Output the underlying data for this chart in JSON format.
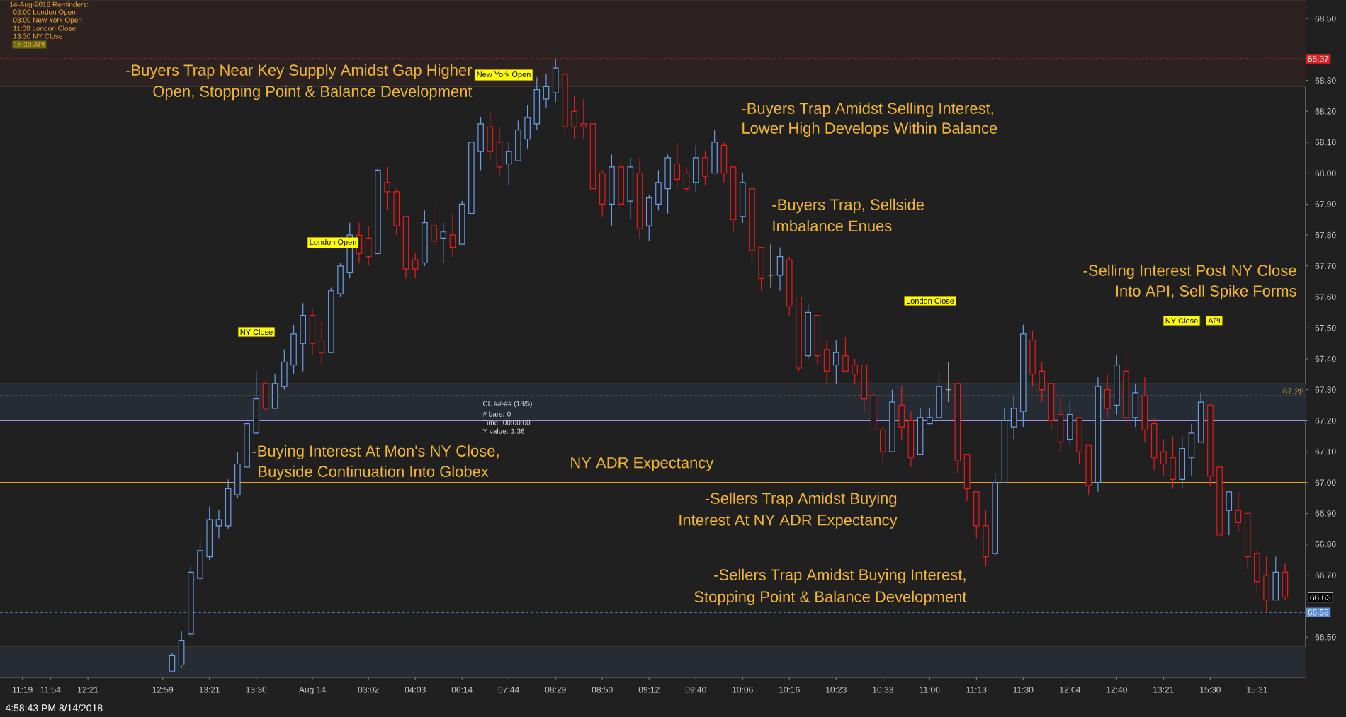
{
  "chart_data": {
    "type": "candlestick",
    "categories": [
      "11:19",
      null,
      null,
      "11:54",
      null,
      null,
      null,
      "12:21",
      null,
      null,
      null,
      null,
      null,
      null,
      null,
      "12:59",
      null,
      null,
      null,
      null,
      "13:21",
      null,
      null,
      null,
      null,
      "13:30",
      null,
      null,
      null,
      null,
      null,
      "Aug 14",
      null,
      null,
      null,
      null,
      null,
      "03:02",
      null,
      null,
      null,
      null,
      "04:03",
      null,
      null,
      null,
      null,
      "06:14",
      null,
      null,
      null,
      null,
      "07:44",
      null,
      null,
      null,
      null,
      "08:29",
      null,
      null,
      null,
      null,
      "08:50",
      null,
      null,
      null,
      null,
      "09:12",
      null,
      null,
      null,
      null,
      "09:40",
      null,
      null,
      null,
      null,
      "10:06",
      null,
      null,
      null,
      null,
      "10:16",
      null,
      null,
      null,
      null,
      "10:23",
      null,
      null,
      null,
      null,
      "10:33",
      null,
      null,
      null,
      null,
      "11:00",
      null,
      null,
      null,
      null,
      "11:13",
      null,
      null,
      null,
      null,
      "11:30",
      null,
      null,
      null,
      null,
      "12:04",
      null,
      null,
      null,
      null,
      "12:40",
      null,
      null,
      null,
      null,
      "13:21",
      null,
      null,
      null,
      null,
      "15:30",
      null,
      null,
      null,
      null,
      "15:31",
      null,
      null,
      null
    ],
    "ohlc": [
      null,
      null,
      null,
      null,
      null,
      null,
      null,
      null,
      null,
      null,
      null,
      null,
      null,
      null,
      null,
      null,
      [
        66.39,
        66.45,
        66.39,
        66.44
      ],
      [
        66.41,
        66.52,
        66.4,
        66.49
      ],
      [
        66.51,
        66.73,
        66.5,
        66.71
      ],
      [
        66.69,
        66.82,
        66.68,
        66.78
      ],
      [
        66.76,
        66.92,
        66.75,
        66.88
      ],
      [
        66.86,
        66.91,
        66.82,
        66.88
      ],
      [
        66.86,
        67.01,
        66.85,
        66.98
      ],
      [
        66.96,
        67.1,
        66.95,
        67.06
      ],
      [
        67.05,
        67.21,
        67.05,
        67.19
      ],
      [
        67.16,
        67.36,
        67.16,
        67.27
      ],
      [
        67.32,
        67.33,
        67.23,
        67.24
      ],
      [
        67.24,
        67.35,
        67.24,
        67.32
      ],
      [
        67.31,
        67.43,
        67.3,
        67.39
      ],
      [
        67.38,
        67.51,
        67.35,
        67.48
      ],
      [
        67.45,
        67.58,
        67.36,
        67.54
      ],
      [
        67.54,
        67.56,
        67.41,
        67.45
      ],
      [
        67.46,
        67.52,
        67.38,
        67.42
      ],
      [
        67.42,
        67.63,
        67.42,
        67.62
      ],
      [
        67.61,
        67.71,
        67.6,
        67.7
      ],
      [
        67.68,
        67.84,
        67.66,
        67.8
      ],
      [
        67.8,
        67.84,
        67.71,
        67.74
      ],
      [
        67.79,
        67.83,
        67.7,
        67.73
      ],
      [
        67.74,
        68.02,
        67.74,
        68.01
      ],
      [
        67.97,
        68.02,
        67.88,
        67.94
      ],
      [
        67.94,
        67.95,
        67.8,
        67.83
      ],
      [
        67.86,
        67.86,
        67.66,
        67.69
      ],
      [
        67.72,
        67.74,
        67.66,
        67.69
      ],
      [
        67.71,
        67.88,
        67.7,
        67.84
      ],
      [
        67.83,
        67.9,
        67.75,
        67.78
      ],
      [
        67.79,
        67.84,
        67.71,
        67.81
      ],
      [
        67.8,
        67.87,
        67.73,
        67.76
      ],
      [
        67.77,
        67.91,
        67.77,
        67.9
      ],
      [
        67.87,
        68.1,
        67.87,
        68.1
      ],
      [
        68.07,
        68.18,
        68.01,
        68.16
      ],
      [
        68.15,
        68.2,
        68.04,
        68.07
      ],
      [
        68.1,
        68.15,
        67.99,
        68.02
      ],
      [
        68.03,
        68.1,
        67.96,
        68.07
      ],
      [
        68.04,
        68.17,
        68.04,
        68.14
      ],
      [
        68.11,
        68.22,
        68.08,
        68.18
      ],
      [
        68.16,
        68.31,
        68.14,
        68.27
      ],
      [
        68.24,
        68.32,
        68.21,
        68.28
      ],
      [
        68.26,
        68.37,
        68.23,
        68.34
      ],
      [
        68.32,
        68.33,
        68.12,
        68.15
      ],
      [
        68.2,
        68.25,
        68.11,
        68.15
      ],
      [
        68.16,
        68.24,
        68.11,
        68.15
      ],
      [
        68.16,
        68.16,
        67.95,
        67.95
      ],
      [
        68.0,
        68.01,
        67.86,
        67.9
      ],
      [
        67.9,
        68.06,
        67.83,
        68.02
      ],
      [
        68.02,
        68.05,
        67.9,
        67.9
      ],
      [
        67.91,
        68.05,
        67.85,
        68.02
      ],
      [
        68.0,
        68.05,
        67.79,
        67.82
      ],
      [
        67.83,
        67.93,
        67.78,
        67.92
      ],
      [
        67.9,
        68.01,
        67.88,
        67.97
      ],
      [
        67.95,
        68.06,
        67.87,
        68.05
      ],
      [
        68.03,
        68.1,
        67.95,
        67.98
      ],
      [
        68.0,
        68.02,
        67.94,
        67.95
      ],
      [
        67.97,
        68.09,
        67.94,
        68.05
      ],
      [
        68.05,
        68.07,
        67.96,
        67.99
      ],
      [
        68.0,
        68.14,
        68.0,
        68.1
      ],
      [
        68.09,
        68.1,
        67.97,
        68.0
      ],
      [
        68.02,
        68.02,
        67.81,
        67.85
      ],
      [
        67.86,
        68.0,
        67.84,
        67.97
      ],
      [
        67.95,
        67.95,
        67.71,
        67.75
      ],
      [
        67.76,
        67.76,
        67.62,
        67.66
      ],
      [
        67.67,
        67.77,
        67.63,
        67.67
      ],
      [
        67.67,
        67.76,
        67.62,
        67.73
      ],
      [
        67.72,
        67.73,
        67.54,
        67.57
      ],
      [
        67.6,
        67.6,
        67.36,
        67.37
      ],
      [
        67.41,
        67.58,
        67.4,
        67.55
      ],
      [
        67.54,
        67.54,
        67.38,
        67.41
      ],
      [
        67.43,
        67.46,
        67.32,
        67.36
      ],
      [
        67.38,
        67.46,
        67.32,
        67.42
      ],
      [
        67.41,
        67.47,
        67.36,
        67.36
      ],
      [
        67.38,
        67.4,
        67.32,
        67.35
      ],
      [
        67.38,
        67.38,
        67.23,
        67.27
      ],
      [
        67.28,
        67.29,
        67.17,
        67.17
      ],
      [
        67.17,
        67.18,
        67.06,
        67.1
      ],
      [
        67.1,
        67.3,
        67.1,
        67.26
      ],
      [
        67.25,
        67.31,
        67.14,
        67.18
      ],
      [
        67.2,
        67.23,
        67.05,
        67.08
      ],
      [
        67.09,
        67.24,
        67.09,
        67.21
      ],
      [
        67.19,
        67.24,
        67.19,
        67.21
      ],
      [
        67.21,
        67.36,
        67.21,
        67.31
      ],
      [
        67.3,
        67.39,
        67.26,
        67.3
      ],
      [
        67.32,
        67.32,
        67.03,
        67.07
      ],
      [
        67.09,
        67.09,
        66.94,
        66.98
      ],
      [
        66.97,
        66.97,
        66.82,
        66.86
      ],
      [
        66.86,
        66.91,
        66.73,
        66.76
      ],
      [
        66.77,
        67.03,
        66.76,
        67.0
      ],
      [
        67.0,
        67.24,
        67.0,
        67.2
      ],
      [
        67.18,
        67.28,
        67.14,
        67.24
      ],
      [
        67.23,
        67.51,
        67.18,
        67.48
      ],
      [
        67.46,
        67.49,
        67.31,
        67.35
      ],
      [
        67.36,
        67.39,
        67.26,
        67.3
      ],
      [
        67.32,
        67.32,
        67.17,
        67.2
      ],
      [
        67.22,
        67.28,
        67.1,
        67.13
      ],
      [
        67.14,
        67.26,
        67.12,
        67.22
      ],
      [
        67.21,
        67.21,
        67.06,
        67.1
      ],
      [
        67.12,
        67.12,
        66.96,
        66.99
      ],
      [
        67.0,
        67.34,
        66.97,
        67.31
      ],
      [
        67.3,
        67.35,
        67.21,
        67.24
      ],
      [
        67.25,
        67.41,
        67.22,
        67.38
      ],
      [
        67.36,
        67.42,
        67.17,
        67.21
      ],
      [
        67.21,
        67.32,
        67.18,
        67.29
      ],
      [
        67.28,
        67.34,
        67.13,
        67.17
      ],
      [
        67.19,
        67.21,
        67.04,
        67.08
      ],
      [
        67.1,
        67.14,
        67.02,
        67.06
      ],
      [
        67.08,
        67.15,
        66.98,
        67.01
      ],
      [
        67.01,
        67.15,
        66.98,
        67.11
      ],
      [
        67.08,
        67.19,
        67.02,
        67.16
      ],
      [
        67.13,
        67.29,
        67.13,
        67.26
      ],
      [
        67.25,
        67.25,
        66.99,
        67.02
      ],
      [
        67.05,
        67.05,
        66.83,
        66.83
      ],
      [
        66.91,
        66.97,
        66.83,
        66.97
      ],
      [
        66.91,
        66.97,
        66.84,
        66.87
      ],
      [
        66.9,
        66.9,
        66.72,
        66.76
      ],
      [
        66.77,
        66.79,
        66.64,
        66.68
      ],
      [
        66.7,
        66.76,
        66.58,
        66.62
      ],
      [
        66.62,
        66.76,
        66.62,
        66.71
      ],
      [
        66.71,
        66.74,
        66.62,
        66.63
      ]
    ],
    "colors": [
      null,
      null,
      null,
      null,
      null,
      null,
      null,
      null,
      null,
      null,
      null,
      null,
      null,
      null,
      null,
      null,
      "#6a9de8",
      "#6a9de8",
      "#6a9de8",
      "#6a9de8",
      "#6a9de8",
      "#6a9de8",
      "#6a9de8",
      "#6a9de8",
      "#6a9de8",
      "#6a9de8",
      "#e81c1c",
      "#6a9de8",
      "#6a9de8",
      "#6a9de8",
      "#6a9de8",
      "#e81c1c",
      "#e81c1c",
      "#6a9de8",
      "#6a9de8",
      "#6a9de8",
      "#e81c1c",
      "#e81c1c",
      "#6a9de8",
      "#e81c1c",
      "#e81c1c",
      "#e81c1c",
      "#e81c1c",
      "#6a9de8",
      "#e81c1c",
      "#6a9de8",
      "#e81c1c",
      "#6a9de8",
      "#6a9de8",
      "#6a9de8",
      "#e81c1c",
      "#e81c1c",
      "#6a9de8",
      "#6a9de8",
      "#6a9de8",
      "#6a9de8",
      "#6a9de8",
      "#6a9de8",
      "#e81c1c",
      "#e81c1c",
      "#e81c1c",
      "#e81c1c",
      "#e81c1c",
      "#6a9de8",
      "#e81c1c",
      "#6a9de8",
      "#e81c1c",
      "#6a9de8",
      "#6a9de8",
      "#6a9de8",
      "#e81c1c",
      "#e81c1c",
      "#6a9de8",
      "#e81c1c",
      "#6a9de8",
      "#e81c1c",
      "#e81c1c",
      "#6a9de8",
      "#e81c1c",
      "#e81c1c",
      "#a0a0a0",
      "#6a9de8",
      "#e81c1c",
      "#e81c1c",
      "#6a9de8",
      "#e81c1c",
      "#e81c1c",
      "#6a9de8",
      "#e81c1c",
      "#e81c1c",
      "#e81c1c",
      "#e81c1c",
      "#e81c1c",
      "#6a9de8",
      "#e81c1c",
      "#e81c1c",
      "#6a9de8",
      "#6a9de8",
      "#6a9de8",
      "#a0a0a0",
      "#e81c1c",
      "#e81c1c",
      "#e81c1c",
      "#e81c1c",
      "#6a9de8",
      "#6a9de8",
      "#6a9de8",
      "#6a9de8",
      "#e81c1c",
      "#e81c1c",
      "#e81c1c",
      "#e81c1c",
      "#6a9de8",
      "#e81c1c",
      "#e81c1c",
      "#6a9de8",
      "#e81c1c",
      "#6a9de8",
      "#e81c1c",
      "#6a9de8",
      "#e81c1c",
      "#e81c1c",
      "#e81c1c",
      "#e81c1c",
      "#6a9de8",
      "#6a9de8",
      "#6a9de8",
      "#e81c1c",
      "#e81c1c",
      "#6a9de8",
      "#e81c1c",
      "#e81c1c",
      "#e81c1c",
      "#e81c1c",
      "#6a9de8",
      "#e81c1c"
    ],
    "ylim": [
      66.37,
      68.56
    ],
    "yticks": [
      {
        "value": 66.5,
        "label": "66.50"
      },
      {
        "value": 66.7,
        "label": "66.70"
      },
      {
        "value": 66.8,
        "label": "66.80"
      },
      {
        "value": 66.9,
        "label": "66.90"
      },
      {
        "value": 67.0,
        "label": "67.00"
      },
      {
        "value": 67.1,
        "label": "67.10"
      },
      {
        "value": 67.2,
        "label": "67.20"
      },
      {
        "value": 67.3,
        "label": "67.30"
      },
      {
        "value": 67.4,
        "label": "67.40"
      },
      {
        "value": 67.5,
        "label": "67.50"
      },
      {
        "value": 67.6,
        "label": "67.60"
      },
      {
        "value": 67.7,
        "label": "67.70"
      },
      {
        "value": 67.8,
        "label": "67.80"
      },
      {
        "value": 67.9,
        "label": "67.90"
      },
      {
        "value": 68.0,
        "label": "68.00"
      },
      {
        "value": 68.1,
        "label": "68.10"
      },
      {
        "value": 68.2,
        "label": "68.20"
      },
      {
        "value": 68.3,
        "label": "68.30"
      },
      {
        "value": 68.5,
        "label": "68.50"
      }
    ],
    "bands": [
      {
        "axis": "y",
        "from": 68.28,
        "to": 68.56,
        "color": "#2c2222"
      },
      {
        "axis": "y",
        "from": 67.2,
        "to": 67.32,
        "color": "#262c33"
      },
      {
        "axis": "y",
        "from": 66.37,
        "to": 66.47,
        "color": "#262b31"
      }
    ],
    "ref_lines": [
      {
        "axis": "y",
        "value": 67.0,
        "color": "#e8a020",
        "line_style": "solid"
      },
      {
        "axis": "y",
        "value": 67.2,
        "color": "#9a8ee8",
        "line_style": "solid"
      },
      {
        "axis": "y",
        "value": 67.28,
        "label": "67.28",
        "color": "#c8a030",
        "line_style": "dashed"
      },
      {
        "axis": "y",
        "value": 68.37,
        "label": "68.37",
        "color": "#e02020",
        "line_style": "dashed"
      },
      {
        "axis": "y",
        "value": 66.58,
        "label": "66.58",
        "color": "#5b8ddb",
        "line_style": "dashed"
      }
    ],
    "annotations": [
      "14-Aug-2018 Reminders:",
      "02:00 London Open",
      "08:00 New York Open",
      "11:00 London Close",
      "13:30 NY Close",
      "15:30 API",
      "-Buyers Trap Near Key Supply Amidst Gap Higher",
      "Open, Stopping Point & Balance Development",
      "-Buyers Trap Amidst Selling Interest,",
      "Lower High Develops Within Balance",
      "-Buyers Trap, Sellside",
      "Imbalance Enues",
      "-Selling Interest Post NY Close",
      "Into API, Sell Spike Forms",
      "-Buying Interest At Mon's NY Close,",
      "Buyside Continuation Into Globex",
      "NY ADR  Expectancy",
      "-Sellers Trap Amidst Buying",
      "Interest At NY ADR Expectancy",
      "-Sellers Trap Amidst Buying Interest,",
      "Stopping Point & Balance Development",
      "NY Close",
      "London Open",
      "New York Open",
      "London Close",
      "NY Close",
      "API",
      "CL ##-## (13/5)",
      "# bars: 0",
      "Time: 00:00:00",
      "Y value: 1.36",
      "4:58:43 PM 8/14/2018",
      "66.63"
    ]
  }
}
